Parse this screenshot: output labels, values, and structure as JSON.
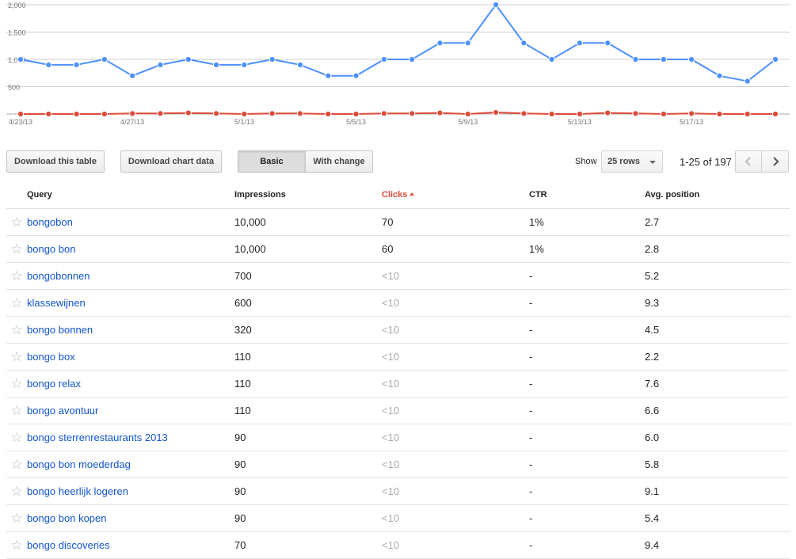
{
  "chart_data": {
    "type": "line",
    "y_ticks": [
      "2,000",
      "1,500",
      "1,000",
      "500"
    ],
    "ylim": [
      0,
      2000
    ],
    "x_tick_labels": [
      "4/23/13",
      "4/27/13",
      "5/1/13",
      "5/5/13",
      "5/9/13",
      "5/13/13",
      "5/17/13"
    ],
    "x_tick_indices": [
      0,
      4,
      8,
      12,
      16,
      20,
      24
    ],
    "colors": {
      "impressions": "#4d90fe",
      "clicks": "#dd4b39"
    },
    "series": [
      {
        "values": [
          1000,
          900,
          900,
          1000,
          700,
          900,
          1000,
          900,
          900,
          1000,
          900,
          700,
          700,
          1000,
          1000,
          1300,
          1300,
          2000,
          1300,
          1000,
          1300,
          1300,
          1000,
          1000,
          1000,
          700,
          600,
          1000
        ]
      },
      {
        "values": [
          0,
          0,
          0,
          0,
          10,
          10,
          20,
          10,
          0,
          10,
          10,
          0,
          0,
          10,
          10,
          20,
          0,
          30,
          10,
          0,
          0,
          20,
          10,
          0,
          10,
          0,
          0,
          0
        ]
      }
    ]
  },
  "toolbar": {
    "download_table": "Download this table",
    "download_chart": "Download chart data",
    "basic": "Basic",
    "with_change": "With change",
    "show": "Show",
    "rows": "25 rows",
    "range": "1-25 of 197"
  },
  "table": {
    "headers": {
      "query": "Query",
      "impressions": "Impressions",
      "clicks": "Clicks",
      "ctr": "CTR",
      "position": "Avg. position"
    },
    "rows": [
      {
        "query": "bongobon",
        "impressions": "10,000",
        "clicks": "70",
        "ctr": "1%",
        "position": "2.7"
      },
      {
        "query": "bongo bon",
        "impressions": "10,000",
        "clicks": "60",
        "ctr": "1%",
        "position": "2.8"
      },
      {
        "query": "bongobonnen",
        "impressions": "700",
        "clicks": "<10",
        "ctr": "-",
        "position": "5.2"
      },
      {
        "query": "klassewijnen",
        "impressions": "600",
        "clicks": "<10",
        "ctr": "-",
        "position": "9.3"
      },
      {
        "query": "bongo bonnen",
        "impressions": "320",
        "clicks": "<10",
        "ctr": "-",
        "position": "4.5"
      },
      {
        "query": "bongo box",
        "impressions": "110",
        "clicks": "<10",
        "ctr": "-",
        "position": "2.2"
      },
      {
        "query": "bongo relax",
        "impressions": "110",
        "clicks": "<10",
        "ctr": "-",
        "position": "7.6"
      },
      {
        "query": "bongo avontuur",
        "impressions": "110",
        "clicks": "<10",
        "ctr": "-",
        "position": "6.6"
      },
      {
        "query": "bongo sterrenrestaurants 2013",
        "impressions": "90",
        "clicks": "<10",
        "ctr": "-",
        "position": "6.0"
      },
      {
        "query": "bongo bon moederdag",
        "impressions": "90",
        "clicks": "<10",
        "ctr": "-",
        "position": "5.8"
      },
      {
        "query": "bongo heerlijk logeren",
        "impressions": "90",
        "clicks": "<10",
        "ctr": "-",
        "position": "9.1"
      },
      {
        "query": "bongo bon kopen",
        "impressions": "90",
        "clicks": "<10",
        "ctr": "-",
        "position": "5.4"
      },
      {
        "query": "bongo discoveries",
        "impressions": "70",
        "clicks": "<10",
        "ctr": "-",
        "position": "9.4"
      }
    ]
  }
}
